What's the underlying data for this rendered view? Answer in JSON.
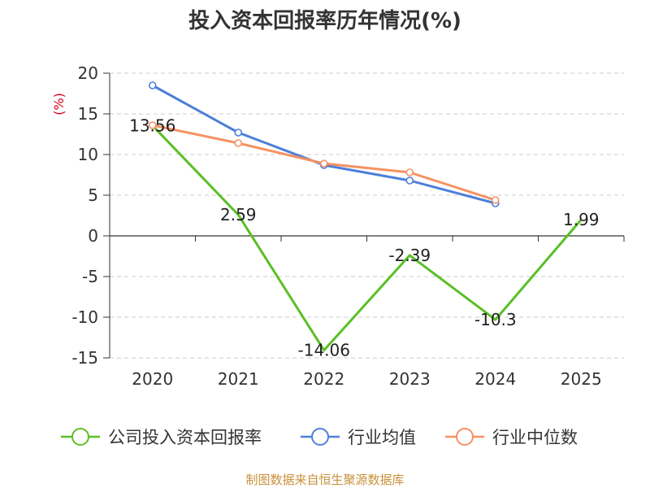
{
  "chart_data": {
    "type": "line",
    "title": "投入资本回报率历年情况(%)",
    "ylabel": "(%)",
    "xlabel": "",
    "categories": [
      "2020",
      "2021",
      "2022",
      "2023",
      "2024",
      "2025"
    ],
    "ylim": [
      -15,
      20
    ],
    "yticks": [
      20,
      15,
      10,
      5,
      0,
      -5,
      -10,
      -15
    ],
    "ytick_labels": [
      "20",
      "15",
      "10",
      "5",
      "0",
      "-5",
      "-10",
      "-15"
    ],
    "grid": true,
    "legend_position": "bottom",
    "series": [
      {
        "name": "公司投入资本回报率",
        "color": "#5bbf26",
        "values": [
          13.56,
          2.59,
          -14.06,
          -2.39,
          -10.3,
          1.99
        ],
        "labels": [
          "13.56",
          "2.59",
          "-14.06",
          "-2.39",
          "-10.3",
          "1.99"
        ]
      },
      {
        "name": "行业均值",
        "color": "#4d7fd9",
        "values": [
          18.5,
          12.7,
          8.7,
          6.8,
          4.0,
          null
        ]
      },
      {
        "name": "行业中位数",
        "color": "#f59262",
        "values": [
          13.6,
          11.4,
          8.9,
          7.8,
          4.4,
          null
        ]
      }
    ],
    "source": "制图数据来自恒生聚源数据库"
  }
}
